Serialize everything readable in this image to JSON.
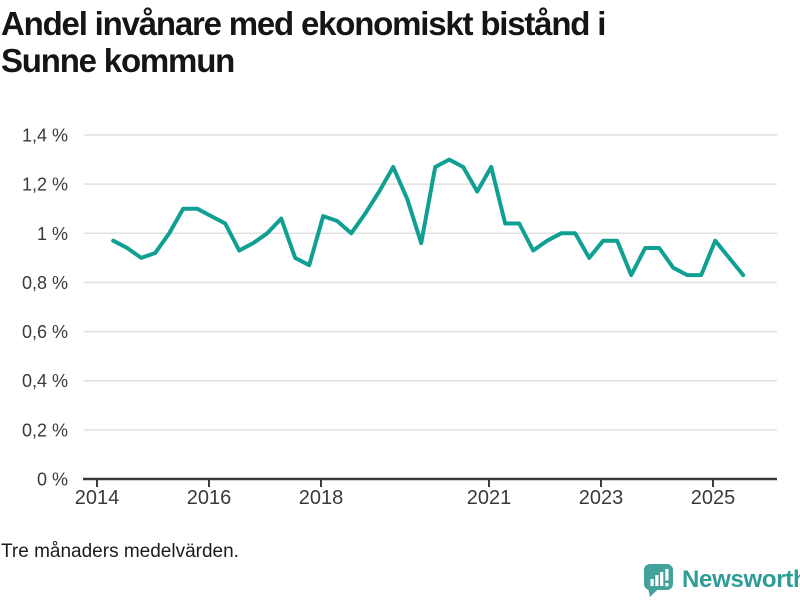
{
  "header": {
    "title_full": "Andel invånare med ekonomiskt bistånd i Sunne kommun",
    "title_lines": [
      "Andel invånare med ekonomiskt bistånd i",
      "Sunne kommun"
    ]
  },
  "chart_data": {
    "type": "line",
    "title": "Andel invånare med ekonomiskt bistånd i Sunne kommun",
    "footnote": "Tre månaders medelvärden.",
    "unit": "%",
    "grid": "horizontal",
    "legend_position": "none",
    "ylim": [
      0,
      1.4
    ],
    "xlim": [
      2013.77,
      2026.14
    ],
    "y_ticks": [
      {
        "v": 0,
        "label": "0 %"
      },
      {
        "v": 0.2,
        "label": "0,2 %"
      },
      {
        "v": 0.4,
        "label": "0,4 %"
      },
      {
        "v": 0.6,
        "label": "0,6 %"
      },
      {
        "v": 0.8,
        "label": "0,8 %"
      },
      {
        "v": 1.0,
        "label": "1 %"
      },
      {
        "v": 1.2,
        "label": "1,2 %"
      },
      {
        "v": 1.4,
        "label": "1,4 %"
      }
    ],
    "x_ticks": [
      {
        "v": 2014,
        "label": "2014"
      },
      {
        "v": 2016,
        "label": "2016"
      },
      {
        "v": 2018,
        "label": "2018"
      },
      {
        "v": 2021,
        "label": "2021"
      },
      {
        "v": 2023,
        "label": "2023"
      },
      {
        "v": 2025,
        "label": "2025"
      }
    ],
    "series": [
      {
        "name": "Andel invånare med ekonomiskt bistånd, Sunne kommun",
        "color": "#10a093",
        "frequency": "quarterly (tre månaders medelvärden)",
        "x_start": 2014.29,
        "x_step": 0.25,
        "values": [
          0.97,
          0.94,
          0.9,
          0.92,
          1.0,
          1.1,
          1.1,
          1.07,
          1.04,
          0.93,
          0.96,
          1.0,
          1.06,
          0.9,
          0.87,
          1.07,
          1.05,
          1.0,
          1.08,
          1.17,
          1.27,
          1.14,
          0.96,
          1.27,
          1.3,
          1.27,
          1.17,
          1.27,
          1.04,
          1.04,
          0.93,
          0.97,
          1.0,
          1.0,
          0.9,
          0.97,
          0.97,
          0.83,
          0.94,
          0.94,
          0.86,
          0.83,
          0.83,
          0.97,
          0.9,
          0.83
        ]
      }
    ],
    "colors": {
      "line": "#10a093",
      "gridline": "#e0e0e0",
      "axis": "#3a3a3a",
      "tick_label": "#3a3a3a"
    }
  },
  "footer": {
    "brand": "Newsworthy",
    "brand_color": "#2f9c96",
    "brand_bubble_color": "#43a39c"
  }
}
